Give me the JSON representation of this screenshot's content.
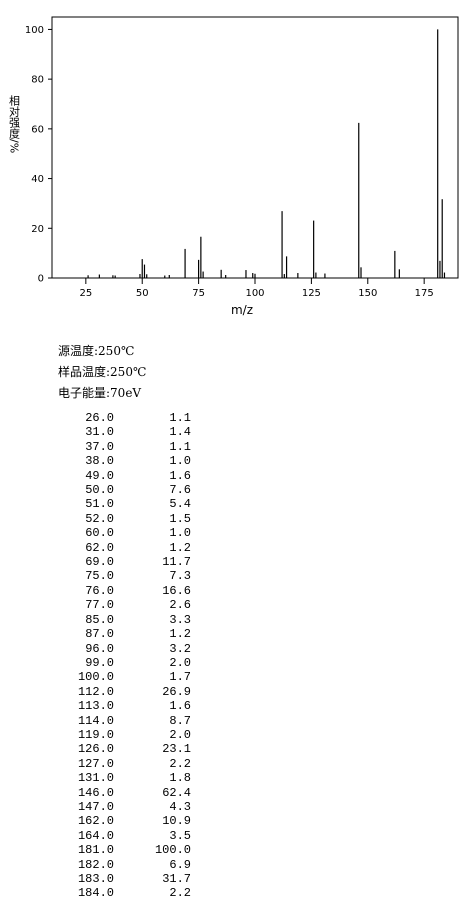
{
  "chart_data": {
    "type": "bar",
    "ylabel": "相对强度/%",
    "xlabel": "m/z",
    "x": [
      26,
      31,
      37,
      38,
      49,
      50,
      51,
      52,
      60,
      62,
      69,
      75,
      76,
      77,
      85,
      87,
      96,
      99,
      100,
      112,
      113,
      114,
      119,
      126,
      127,
      131,
      146,
      147,
      162,
      164,
      181,
      182,
      183,
      184
    ],
    "values": [
      1.1,
      1.4,
      1.1,
      1.0,
      1.6,
      7.6,
      5.4,
      1.5,
      1.0,
      1.2,
      11.7,
      7.3,
      16.6,
      2.6,
      3.3,
      1.2,
      3.2,
      2.0,
      1.7,
      26.9,
      1.6,
      8.7,
      2.0,
      23.1,
      2.2,
      1.8,
      62.4,
      4.3,
      10.9,
      3.5,
      100.0,
      6.9,
      31.7,
      2.2
    ],
    "color": "#000000",
    "xlim": [
      10,
      190
    ],
    "ylim": [
      0,
      105
    ],
    "xticks": [
      25,
      50,
      75,
      100,
      125,
      150,
      175
    ],
    "yticks": [
      0,
      20,
      40,
      60,
      80,
      100
    ]
  },
  "conditions": [
    "源温度:250℃",
    "样品温度:250℃",
    "电子能量:70eV"
  ],
  "table": {
    "rows": [
      [
        "26.0",
        "1.1"
      ],
      [
        "31.0",
        "1.4"
      ],
      [
        "37.0",
        "1.1"
      ],
      [
        "38.0",
        "1.0"
      ],
      [
        "49.0",
        "1.6"
      ],
      [
        "50.0",
        "7.6"
      ],
      [
        "51.0",
        "5.4"
      ],
      [
        "52.0",
        "1.5"
      ],
      [
        "60.0",
        "1.0"
      ],
      [
        "62.0",
        "1.2"
      ],
      [
        "69.0",
        "11.7"
      ],
      [
        "75.0",
        "7.3"
      ],
      [
        "76.0",
        "16.6"
      ],
      [
        "77.0",
        "2.6"
      ],
      [
        "85.0",
        "3.3"
      ],
      [
        "87.0",
        "1.2"
      ],
      [
        "96.0",
        "3.2"
      ],
      [
        "99.0",
        "2.0"
      ],
      [
        "100.0",
        "1.7"
      ],
      [
        "112.0",
        "26.9"
      ],
      [
        "113.0",
        "1.6"
      ],
      [
        "114.0",
        "8.7"
      ],
      [
        "119.0",
        "2.0"
      ],
      [
        "126.0",
        "23.1"
      ],
      [
        "127.0",
        "2.2"
      ],
      [
        "131.0",
        "1.8"
      ],
      [
        "146.0",
        "62.4"
      ],
      [
        "147.0",
        "4.3"
      ],
      [
        "162.0",
        "10.9"
      ],
      [
        "164.0",
        "3.5"
      ],
      [
        "181.0",
        "100.0"
      ],
      [
        "182.0",
        "6.9"
      ],
      [
        "183.0",
        "31.7"
      ],
      [
        "184.0",
        "2.2"
      ]
    ]
  }
}
